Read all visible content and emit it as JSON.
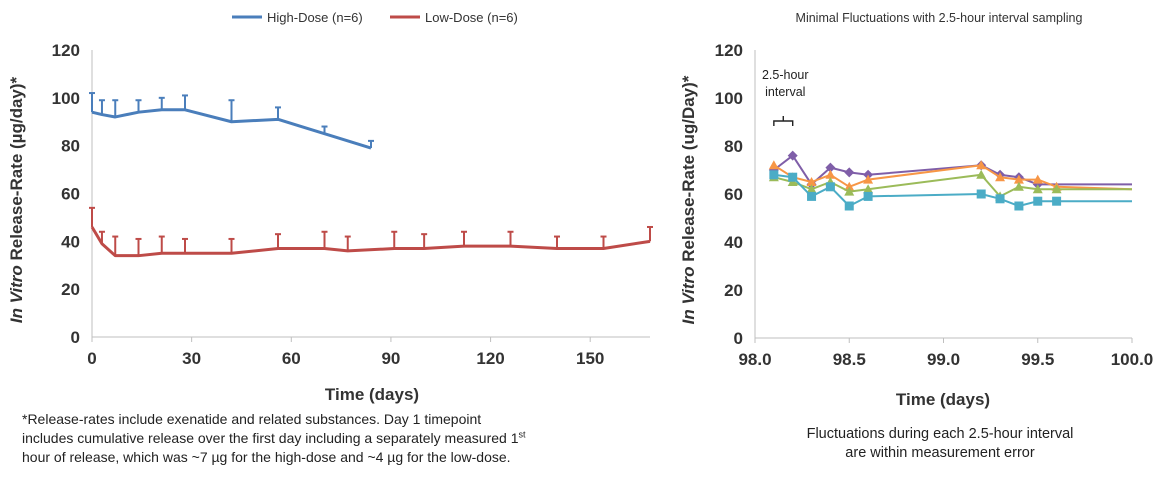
{
  "chart_data": [
    {
      "type": "line",
      "ylabel_italic": "In Vitro",
      "ylabel_rest": "Release-Rate (µg/day)*",
      "xlabel": "Time (days)",
      "xlim": [
        0,
        168
      ],
      "ylim": [
        0,
        120
      ],
      "xticks": [
        "0",
        "30",
        "60",
        "90",
        "120",
        "150"
      ],
      "yticks": [
        "0",
        "20",
        "40",
        "60",
        "80",
        "100",
        "120"
      ],
      "legend_position": "top",
      "grid": false,
      "series": [
        {
          "name": "High-Dose (n=6)",
          "color": "#4a7ebb",
          "x": [
            0,
            3,
            7,
            14,
            21,
            28,
            42,
            56,
            70,
            84
          ],
          "y": [
            94,
            93,
            92,
            94,
            95,
            95,
            90,
            91,
            85,
            79
          ],
          "err": [
            8,
            6,
            7,
            5,
            5,
            6,
            9,
            5,
            3,
            3
          ]
        },
        {
          "name": "Low-Dose (n=6)",
          "color": "#be4b48",
          "x": [
            0,
            3,
            7,
            14,
            21,
            28,
            42,
            56,
            70,
            77,
            91,
            100,
            112,
            126,
            140,
            154,
            168
          ],
          "y": [
            46,
            39,
            34,
            34,
            35,
            35,
            35,
            37,
            37,
            36,
            37,
            37,
            38,
            38,
            37,
            37,
            40
          ],
          "err": [
            8,
            5,
            8,
            7,
            7,
            6,
            6,
            6,
            7,
            6,
            7,
            6,
            6,
            6,
            5,
            5,
            6
          ]
        }
      ]
    },
    {
      "type": "line",
      "title": "Minimal Fluctuations with 2.5-hour interval sampling",
      "ylabel_italic": "In Vitro",
      "ylabel_rest": "Release-Rate (ug/Day)*",
      "xlabel": "Time (days)",
      "xlim": [
        98.0,
        100.0
      ],
      "ylim": [
        0,
        120
      ],
      "xticks": [
        "98.0",
        "98.5",
        "99.0",
        "99.5",
        "100.0"
      ],
      "yticks": [
        "0",
        "20",
        "40",
        "60",
        "80",
        "100",
        "120"
      ],
      "grid": false,
      "annotation": {
        "line1": "2.5-hour",
        "line2": "interval",
        "x_start": 98.1,
        "x_end": 98.2
      },
      "series": [
        {
          "color": "#7f5ea8",
          "marker": "diamond",
          "x": [
            98.1,
            98.2,
            98.3,
            98.4,
            98.5,
            98.6,
            99.2,
            99.3,
            99.4,
            99.5,
            100.0
          ],
          "y": [
            70,
            76,
            64,
            71,
            69,
            68,
            72,
            68,
            67,
            64,
            64
          ]
        },
        {
          "color": "#f79646",
          "marker": "triangle",
          "x": [
            98.1,
            98.2,
            98.3,
            98.4,
            98.5,
            98.6,
            99.2,
            99.3,
            99.4,
            99.5,
            99.6,
            100.0
          ],
          "y": [
            72,
            67,
            65,
            68,
            63,
            66,
            72,
            67,
            66,
            66,
            63,
            62
          ]
        },
        {
          "color": "#9bbb59",
          "marker": "triangle",
          "x": [
            98.1,
            98.2,
            98.3,
            98.4,
            98.5,
            98.6,
            99.2,
            99.3,
            99.4,
            99.5,
            99.6,
            100.0
          ],
          "y": [
            67,
            65,
            62,
            65,
            61,
            62,
            68,
            59,
            63,
            62,
            62,
            62
          ]
        },
        {
          "color": "#4bacc6",
          "marker": "square",
          "x": [
            98.1,
            98.2,
            98.3,
            98.4,
            98.5,
            98.6,
            99.2,
            99.3,
            99.4,
            99.5,
            99.6,
            100.0
          ],
          "y": [
            68,
            67,
            59,
            63,
            55,
            59,
            60,
            58,
            55,
            57,
            57,
            57
          ]
        }
      ]
    }
  ],
  "footnote": {
    "line1": "*Release-rates include exenatide and related substances.  Day 1 timepoint",
    "line2_start": "includes cumulative release over the first day including a separately measured 1",
    "line2_sup": "st",
    "line3": "hour of release, which was ~7 µg for the high-dose and ~4 µg for the low-dose."
  },
  "caption": {
    "line1": "Fluctuations during each 2.5-hour interval",
    "line2": "are within measurement error"
  }
}
